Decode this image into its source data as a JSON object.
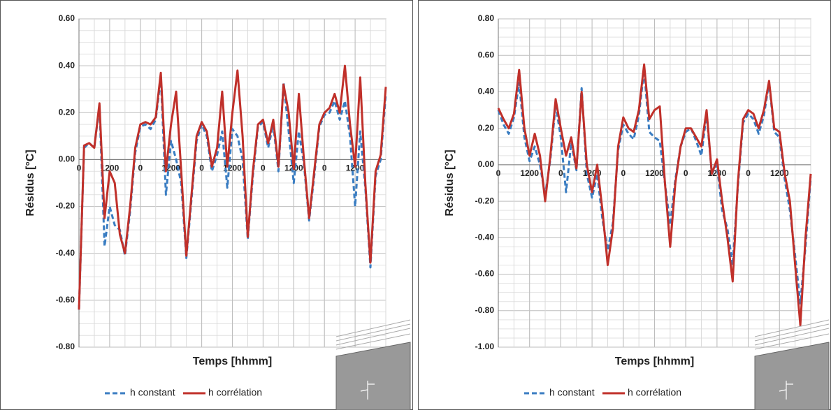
{
  "chart_data": [
    {
      "type": "line",
      "xlabel": "Temps [hhmm]",
      "ylabel": "Résidus [°C]",
      "categories": [
        "0",
        null,
        null,
        null,
        null,
        null,
        "1200",
        null,
        null,
        null,
        null,
        null,
        "0",
        null,
        null,
        null,
        null,
        null,
        "1200",
        null,
        null,
        null,
        null,
        null,
        "0",
        null,
        null,
        null,
        null,
        null,
        "1200",
        null,
        null,
        null,
        null,
        null,
        "0",
        null,
        null,
        null,
        null,
        null,
        "1200",
        null,
        null,
        null,
        null,
        null,
        "0",
        null,
        null,
        null,
        null,
        null,
        "1200",
        null,
        null,
        null,
        null,
        null,
        null
      ],
      "ylim": [
        -0.8,
        0.6
      ],
      "yticks": [
        {
          "value": -0.8,
          "label": "-0.80"
        },
        {
          "value": -0.6,
          "label": "-0.60"
        },
        {
          "value": -0.4,
          "label": "-0.40"
        },
        {
          "value": -0.2,
          "label": "-0.20"
        },
        {
          "value": 0,
          "label": "0.00"
        },
        {
          "value": 0.2,
          "label": "0.20"
        },
        {
          "value": 0.4,
          "label": "0.40"
        },
        {
          "value": 0.6,
          "label": "0.60"
        }
      ],
      "grid": true,
      "legend": "bottom",
      "series": [
        {
          "name": "h constant",
          "color": "#3a7dc2",
          "dash": "dashed",
          "values": [
            -0.64,
            0.05,
            0.07,
            0.05,
            0.23,
            -0.37,
            -0.2,
            -0.28,
            -0.3,
            -0.41,
            -0.22,
            0.03,
            0.14,
            0.15,
            0.13,
            0.17,
            0.35,
            -0.15,
            0.08,
            0.0,
            -0.1,
            -0.42,
            -0.17,
            0.08,
            0.15,
            0.1,
            -0.05,
            0.02,
            0.12,
            -0.12,
            0.13,
            0.1,
            0.0,
            -0.34,
            -0.07,
            0.14,
            0.16,
            0.05,
            0.15,
            -0.05,
            0.33,
            0.12,
            -0.1,
            0.12,
            -0.02,
            -0.26,
            -0.07,
            0.14,
            0.19,
            0.2,
            0.25,
            0.17,
            0.25,
            0.1,
            -0.2,
            0.12,
            -0.12,
            -0.46,
            -0.07,
            0.0,
            0.28
          ]
        },
        {
          "name": "h corrélation",
          "color": "#c0302a",
          "dash": "solid",
          "values": [
            -0.64,
            0.06,
            0.07,
            0.05,
            0.24,
            -0.25,
            -0.05,
            -0.1,
            -0.32,
            -0.4,
            -0.2,
            0.05,
            0.15,
            0.16,
            0.15,
            0.18,
            0.37,
            -0.05,
            0.15,
            0.29,
            -0.05,
            -0.41,
            -0.15,
            0.1,
            0.16,
            0.12,
            -0.03,
            0.05,
            0.29,
            -0.03,
            0.2,
            0.38,
            0.1,
            -0.33,
            -0.05,
            0.15,
            0.17,
            0.07,
            0.17,
            -0.03,
            0.32,
            0.2,
            -0.04,
            0.28,
            0.0,
            -0.25,
            -0.05,
            0.15,
            0.2,
            0.22,
            0.28,
            0.2,
            0.4,
            0.15,
            -0.03,
            0.35,
            -0.1,
            -0.44,
            -0.05,
            0.02,
            0.31
          ]
        }
      ]
    },
    {
      "type": "line",
      "xlabel": "Temps [hhmm]",
      "ylabel": "Résidus [°C]",
      "categories": [
        "0",
        null,
        null,
        null,
        null,
        null,
        "1200",
        null,
        null,
        null,
        null,
        null,
        "0",
        null,
        null,
        null,
        null,
        null,
        "1200",
        null,
        null,
        null,
        null,
        null,
        "0",
        null,
        null,
        null,
        null,
        null,
        "1200",
        null,
        null,
        null,
        null,
        null,
        "0",
        null,
        null,
        null,
        null,
        null,
        "1200",
        null,
        null,
        null,
        null,
        null,
        "0",
        null,
        null,
        null,
        null,
        null,
        "1200",
        null,
        null,
        null,
        null,
        null,
        null
      ],
      "ylim": [
        -1.0,
        0.8
      ],
      "yticks": [
        {
          "value": -1.0,
          "label": "-1.00"
        },
        {
          "value": -0.8,
          "label": "-0.80"
        },
        {
          "value": -0.6,
          "label": "-0.60"
        },
        {
          "value": -0.4,
          "label": "-0.40"
        },
        {
          "value": -0.2,
          "label": "-0.20"
        },
        {
          "value": 0,
          "label": "0.00"
        },
        {
          "value": 0.2,
          "label": "0.20"
        },
        {
          "value": 0.4,
          "label": "0.40"
        },
        {
          "value": 0.6,
          "label": "0.60"
        },
        {
          "value": 0.8,
          "label": "0.80"
        }
      ],
      "grid": true,
      "legend": "bottom",
      "series": [
        {
          "name": "h constant",
          "color": "#3a7dc2",
          "dash": "dashed",
          "values": [
            0.3,
            0.22,
            0.17,
            0.26,
            0.45,
            0.15,
            0.02,
            0.1,
            0.0,
            -0.17,
            0.03,
            0.33,
            0.15,
            -0.15,
            0.12,
            -0.03,
            0.42,
            -0.05,
            -0.18,
            -0.05,
            -0.3,
            -0.47,
            -0.32,
            0.08,
            0.22,
            0.17,
            0.14,
            0.27,
            0.52,
            0.18,
            0.15,
            0.13,
            -0.1,
            -0.33,
            -0.08,
            0.1,
            0.18,
            0.2,
            0.13,
            0.05,
            0.28,
            -0.05,
            0.0,
            -0.25,
            -0.35,
            -0.55,
            -0.12,
            0.23,
            0.28,
            0.25,
            0.17,
            0.27,
            0.45,
            0.18,
            0.15,
            -0.08,
            -0.25,
            -0.5,
            -0.76,
            -0.45,
            -0.07
          ]
        },
        {
          "name": "h corrélation",
          "color": "#c0302a",
          "dash": "solid",
          "values": [
            0.31,
            0.25,
            0.2,
            0.28,
            0.52,
            0.2,
            0.05,
            0.17,
            0.05,
            -0.2,
            0.05,
            0.36,
            0.2,
            0.05,
            0.15,
            -0.02,
            0.4,
            0.0,
            -0.15,
            0.0,
            -0.25,
            -0.55,
            -0.35,
            0.1,
            0.26,
            0.2,
            0.18,
            0.3,
            0.55,
            0.25,
            0.3,
            0.32,
            -0.1,
            -0.45,
            -0.1,
            0.1,
            0.2,
            0.2,
            0.15,
            0.1,
            0.3,
            -0.05,
            0.03,
            -0.2,
            -0.4,
            -0.64,
            -0.1,
            0.25,
            0.3,
            0.28,
            0.2,
            0.3,
            0.46,
            0.2,
            0.18,
            -0.05,
            -0.2,
            -0.55,
            -0.88,
            -0.4,
            -0.05
          ]
        }
      ]
    }
  ]
}
